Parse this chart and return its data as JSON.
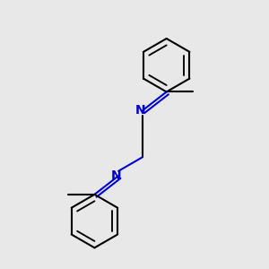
{
  "background_color": "#e8e8e8",
  "bond_color": "#000000",
  "nitrogen_color": "#0000cc",
  "line_width": 1.5,
  "figsize": [
    3.0,
    3.0
  ],
  "dpi": 100
}
